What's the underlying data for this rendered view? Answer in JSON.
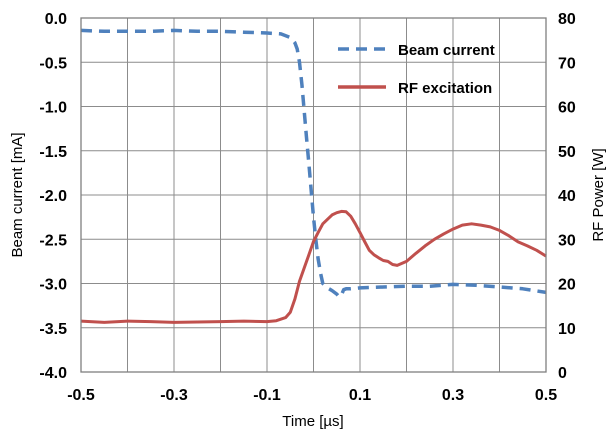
{
  "chart_data": {
    "type": "line",
    "title": "",
    "xlabel": "Time [µs]",
    "ylabel_left": "Beam current [mA]",
    "ylabel_right": "RF Power [W]",
    "xlim": [
      -0.5,
      0.5
    ],
    "ylim_left": [
      -4.0,
      0.0
    ],
    "ylim_right": [
      0,
      80
    ],
    "x_ticks": [
      -0.5,
      -0.3,
      -0.1,
      0.1,
      0.3,
      0.5
    ],
    "x_tick_labels": [
      "-0.5",
      "-0.3",
      "-0.1",
      "0.1",
      "0.3",
      "0.5"
    ],
    "x_grid": [
      -0.5,
      -0.4,
      -0.3,
      -0.2,
      -0.1,
      0.0,
      0.1,
      0.2,
      0.3,
      0.4,
      0.5
    ],
    "y_left_ticks": [
      0.0,
      -0.5,
      -1.0,
      -1.5,
      -2.0,
      -2.5,
      -3.0,
      -3.5,
      -4.0
    ],
    "y_left_tick_labels": [
      "0.0",
      "-0.5",
      "-1.0",
      "-1.5",
      "-2.0",
      "-2.5",
      "-3.0",
      "-3.5",
      "-4.0"
    ],
    "y_right_ticks": [
      80,
      70,
      60,
      50,
      40,
      30,
      20,
      10,
      0
    ],
    "y_right_tick_labels": [
      "80",
      "70",
      "60",
      "50",
      "40",
      "30",
      "20",
      "10",
      "0"
    ],
    "grid": true,
    "legend_position": "top-right",
    "series": [
      {
        "name": "Beam current",
        "axis": "left",
        "style": "dashed",
        "color": "#4f81bd",
        "x": [
          -0.5,
          -0.45,
          -0.4,
          -0.35,
          -0.3,
          -0.25,
          -0.2,
          -0.15,
          -0.1,
          -0.07,
          -0.05,
          -0.04,
          -0.035,
          -0.03,
          -0.025,
          -0.02,
          -0.015,
          -0.01,
          -0.005,
          0.0,
          0.005,
          0.01,
          0.015,
          0.02,
          0.03,
          0.04,
          0.05,
          0.055,
          0.06,
          0.065,
          0.07,
          0.08,
          0.1,
          0.15,
          0.2,
          0.25,
          0.3,
          0.35,
          0.4,
          0.45,
          0.5
        ],
        "y": [
          -0.14,
          -0.15,
          -0.15,
          -0.15,
          -0.14,
          -0.15,
          -0.15,
          -0.16,
          -0.17,
          -0.18,
          -0.22,
          -0.28,
          -0.35,
          -0.5,
          -0.75,
          -1.05,
          -1.35,
          -1.65,
          -1.95,
          -2.25,
          -2.5,
          -2.72,
          -2.88,
          -3.0,
          -3.05,
          -3.08,
          -3.12,
          -3.15,
          -3.13,
          -3.07,
          -3.06,
          -3.06,
          -3.05,
          -3.04,
          -3.03,
          -3.03,
          -3.01,
          -3.02,
          -3.04,
          -3.06,
          -3.1
        ]
      },
      {
        "name": "RF excitation",
        "axis": "right",
        "style": "solid",
        "color": "#c0504d",
        "x": [
          -0.5,
          -0.45,
          -0.4,
          -0.35,
          -0.3,
          -0.25,
          -0.2,
          -0.15,
          -0.1,
          -0.08,
          -0.06,
          -0.05,
          -0.04,
          -0.03,
          -0.02,
          -0.01,
          0.0,
          0.01,
          0.02,
          0.03,
          0.04,
          0.05,
          0.06,
          0.07,
          0.08,
          0.09,
          0.1,
          0.11,
          0.12,
          0.13,
          0.14,
          0.15,
          0.16,
          0.17,
          0.18,
          0.2,
          0.22,
          0.24,
          0.26,
          0.28,
          0.3,
          0.32,
          0.34,
          0.36,
          0.38,
          0.4,
          0.42,
          0.44,
          0.46,
          0.48,
          0.5
        ],
        "y": [
          11.5,
          11.2,
          11.5,
          11.4,
          11.2,
          11.3,
          11.4,
          11.5,
          11.4,
          11.6,
          12.3,
          13.5,
          16.5,
          20.5,
          23.5,
          26.5,
          29.5,
          31.5,
          33.5,
          34.5,
          35.5,
          36.0,
          36.3,
          36.2,
          35.2,
          33.5,
          31.5,
          29.5,
          27.5,
          26.5,
          25.8,
          25.2,
          25.0,
          24.3,
          24.1,
          25.0,
          26.8,
          28.5,
          30.0,
          31.2,
          32.3,
          33.2,
          33.5,
          33.2,
          32.8,
          32.0,
          30.8,
          29.4,
          28.5,
          27.5,
          26.2
        ]
      }
    ]
  }
}
